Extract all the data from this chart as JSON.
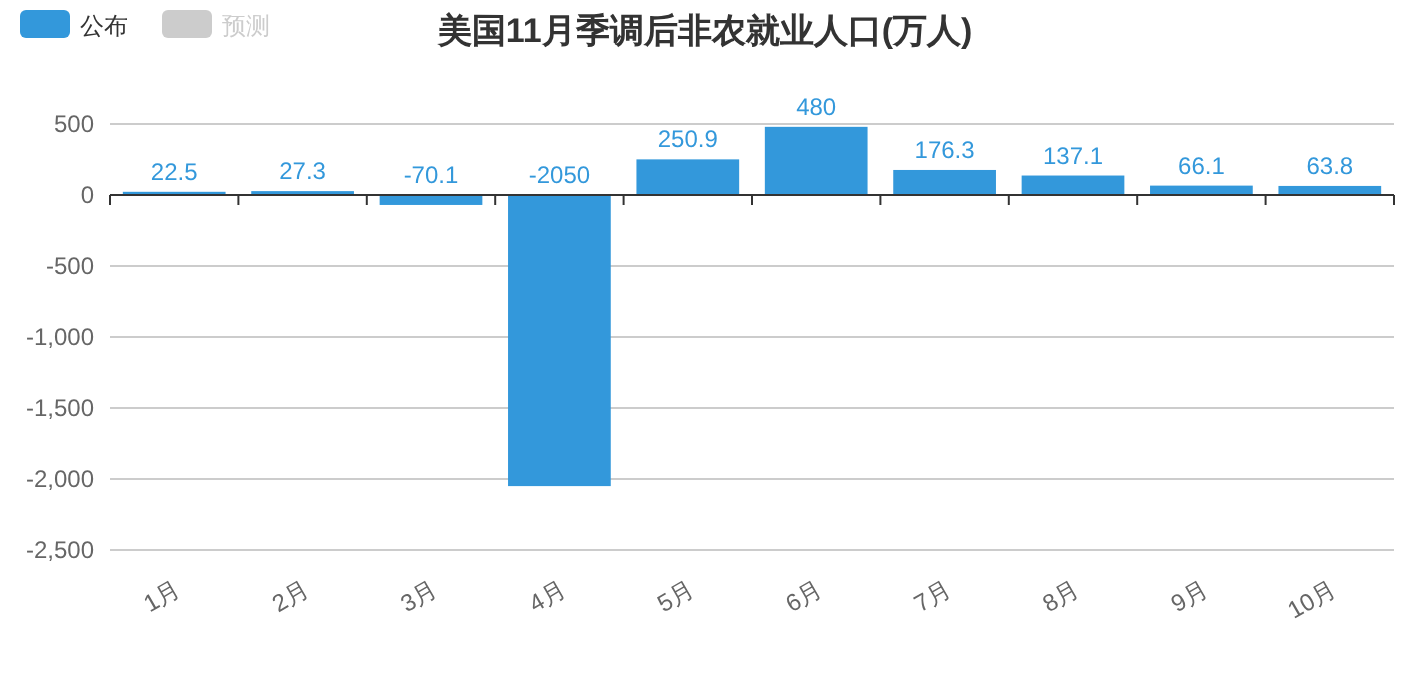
{
  "chart_data": {
    "type": "bar",
    "title": "美国11月季调后非农就业人口(万人)",
    "categories": [
      "1月",
      "2月",
      "3月",
      "4月",
      "5月",
      "6月",
      "7月",
      "8月",
      "9月",
      "10月"
    ],
    "series": [
      {
        "name": "公布",
        "color": "#3398db",
        "values": [
          22.5,
          27.3,
          -70.1,
          -2050,
          250.9,
          480,
          176.3,
          137.1,
          66.1,
          63.8
        ]
      },
      {
        "name": "预测",
        "color": "#cccccc",
        "values": [
          null,
          null,
          null,
          null,
          null,
          null,
          null,
          null,
          null,
          null
        ]
      }
    ],
    "ylim": [
      -2500,
      500
    ],
    "yticks": [
      {
        "value": -2500,
        "label": "-2,500"
      },
      {
        "value": -2000,
        "label": "-2,000"
      },
      {
        "value": -1500,
        "label": "-1,500"
      },
      {
        "value": -1000,
        "label": "-1,000"
      },
      {
        "value": -500,
        "label": "-500"
      },
      0,
      500
    ],
    "grid": "y",
    "legend": "top left",
    "data_labels": true
  }
}
